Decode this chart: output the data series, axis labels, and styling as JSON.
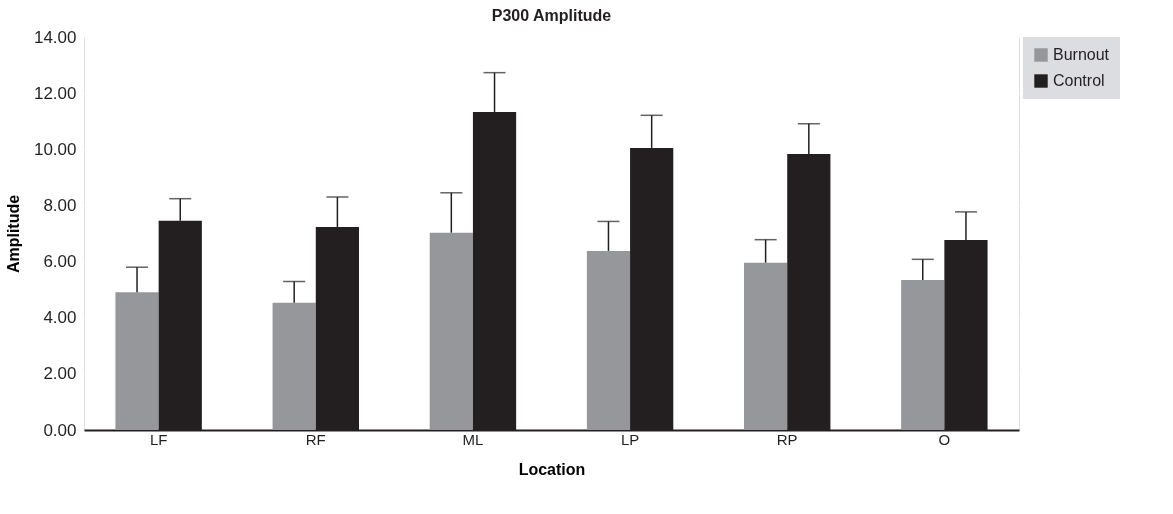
{
  "chart_data": {
    "type": "bar",
    "title": "P300 Amplitude",
    "xlabel": "Location",
    "ylabel": "Amplitude",
    "categories": [
      "LF",
      "RF",
      "ML",
      "LP",
      "RP",
      "O"
    ],
    "series": [
      {
        "name": "Burnout",
        "color": "#96979b",
        "values": [
          4.91,
          4.53,
          7.03,
          6.38,
          5.96,
          5.34
        ],
        "errors": [
          [
            4.91,
            5.8
          ],
          [
            4.53,
            5.29
          ],
          [
            7.03,
            8.45
          ],
          [
            6.38,
            7.43
          ],
          [
            5.96,
            6.78
          ],
          [
            5.34,
            6.08
          ]
        ]
      },
      {
        "name": "Control",
        "color": "#231f20",
        "values": [
          7.45,
          7.23,
          11.33,
          10.05,
          9.83,
          6.77
        ],
        "errors": [
          [
            7.45,
            8.24
          ],
          [
            7.23,
            8.3
          ],
          [
            11.33,
            12.73
          ],
          [
            10.05,
            11.21
          ],
          [
            9.83,
            10.91
          ],
          [
            6.77,
            7.77
          ]
        ]
      }
    ],
    "ylim": [
      0,
      14
    ],
    "yticks": [
      {
        "value": 0,
        "label": "0.00"
      },
      {
        "value": 2,
        "label": "2.00"
      },
      {
        "value": 4,
        "label": "4.00"
      },
      {
        "value": 6,
        "label": "6.00"
      },
      {
        "value": 8,
        "label": "8.00"
      },
      {
        "value": 10,
        "label": "10.00"
      },
      {
        "value": 12,
        "label": "12.00"
      },
      {
        "value": 14,
        "label": "14.00"
      }
    ],
    "grid": "y",
    "legend": "top right"
  }
}
